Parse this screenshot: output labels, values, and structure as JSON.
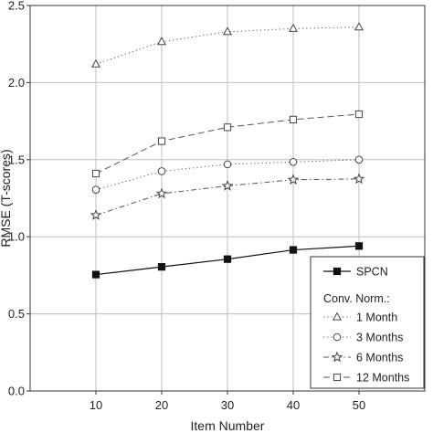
{
  "chart_data": {
    "type": "line",
    "xlabel": "Item Number",
    "ylabel": "RMSE (T-scores)",
    "x": [
      10,
      20,
      30,
      40,
      50
    ],
    "xlim": [
      0,
      60
    ],
    "ylim": [
      0.0,
      2.5
    ],
    "xticks": [
      "10",
      "20",
      "30",
      "40",
      "50"
    ],
    "yticks": [
      "0.0",
      "0.5",
      "1.0",
      "1.5",
      "2.0",
      "2.5"
    ],
    "grid": true,
    "legend_position": "bottom-right",
    "legend_group_heading": "Conv. Norm.:",
    "series": [
      {
        "name": "SPCN",
        "marker": "filled-square",
        "style": "solid",
        "values": [
          0.755,
          0.805,
          0.855,
          0.915,
          0.94
        ]
      },
      {
        "name": "1 Month",
        "marker": "triangle",
        "style": "dotted",
        "values": [
          2.12,
          2.265,
          2.33,
          2.35,
          2.36
        ]
      },
      {
        "name": "3 Months",
        "marker": "circle",
        "style": "dotted",
        "values": [
          1.305,
          1.425,
          1.47,
          1.485,
          1.5
        ]
      },
      {
        "name": "6 Months",
        "marker": "star",
        "style": "dash-dot",
        "values": [
          1.14,
          1.28,
          1.33,
          1.37,
          1.375
        ]
      },
      {
        "name": "12 Months",
        "marker": "square",
        "style": "dashed",
        "values": [
          1.41,
          1.62,
          1.71,
          1.76,
          1.795
        ]
      }
    ]
  }
}
